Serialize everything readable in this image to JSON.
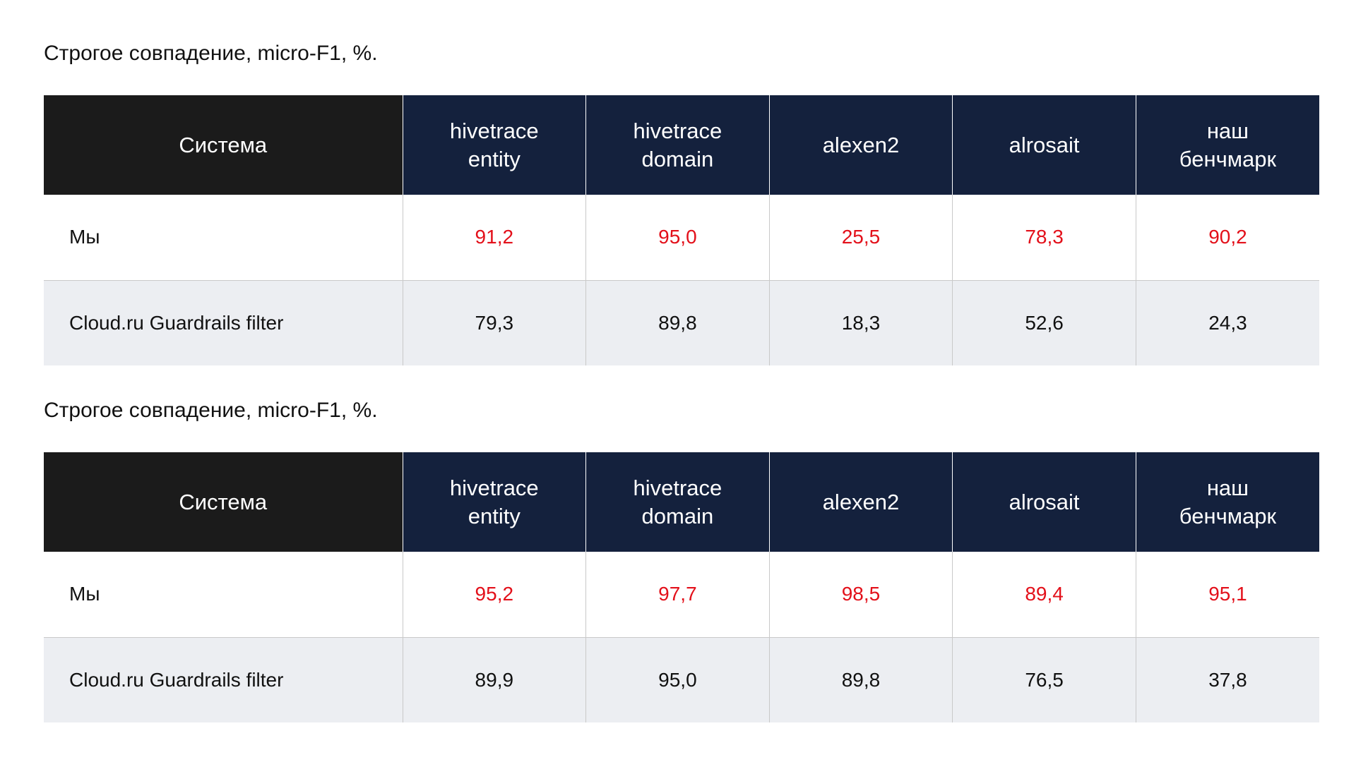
{
  "chart_data": [
    {
      "type": "table",
      "title": "Строгое совпадение, micro-F1, %.",
      "header": {
        "system": "Система",
        "columns": [
          [
            "hivetrace",
            "entity"
          ],
          [
            "hivetrace",
            "domain"
          ],
          [
            "alexen2"
          ],
          [
            "alrosait"
          ],
          [
            "наш",
            "бенчмарк"
          ]
        ]
      },
      "rows": [
        {
          "system": "Мы",
          "values": [
            "91,2",
            "95,0",
            "25,5",
            "78,3",
            "90,2"
          ]
        },
        {
          "system": "Cloud.ru Guardrails filter",
          "values": [
            "79,3",
            "89,8",
            "18,3",
            "52,6",
            "24,3"
          ]
        }
      ]
    },
    {
      "type": "table",
      "title": "Строгое совпадение, micro-F1, %.",
      "header": {
        "system": "Система",
        "columns": [
          [
            "hivetrace",
            "entity"
          ],
          [
            "hivetrace",
            "domain"
          ],
          [
            "alexen2"
          ],
          [
            "alrosait"
          ],
          [
            "наш",
            "бенчмарк"
          ]
        ]
      },
      "rows": [
        {
          "system": "Мы",
          "values": [
            "95,2",
            "97,7",
            "98,5",
            "89,4",
            "95,1"
          ]
        },
        {
          "system": "Cloud.ru Guardrails filter",
          "values": [
            "89,9",
            "95,0",
            "89,8",
            "76,5",
            "37,8"
          ]
        }
      ]
    }
  ],
  "colors": {
    "header_system_bg": "#1b1b1b",
    "header_bg": "#14213d",
    "highlight_text": "#e3101a",
    "alt_row_bg": "#eceef2"
  }
}
